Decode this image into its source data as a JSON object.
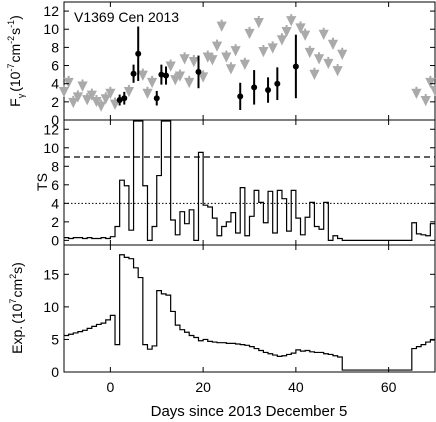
{
  "chart_data": [
    {
      "type": "scatter",
      "annotation": "V1369 Cen 2013",
      "ylabel": "F",
      "ylabel_sub": "γ",
      "ylabel_unit": "(10",
      "ylabel_exp1": "-7",
      "ylabel_unit2": "cm",
      "ylabel_exp2": "-2",
      "ylabel_unit3": "s",
      "ylabel_exp3": "-1",
      "ylabel_close": ")",
      "xlim": [
        -10,
        70
      ],
      "ylim": [
        0,
        13
      ],
      "yticks": [
        0,
        2,
        4,
        6,
        8,
        10,
        12
      ],
      "colors": {
        "detections": "#000000",
        "upper_limits": "#aaaaaa"
      },
      "detections": [
        {
          "x": 2.0,
          "y": 2.2,
          "err": 0.6
        },
        {
          "x": 3.0,
          "y": 2.4,
          "err": 0.7
        },
        {
          "x": 5.0,
          "y": 5.1,
          "err": 1.0
        },
        {
          "x": 6.0,
          "y": 7.3,
          "err": 3.0
        },
        {
          "x": 10.0,
          "y": 2.4,
          "err": 0.8
        },
        {
          "x": 11.0,
          "y": 5.0,
          "err": 1.1
        },
        {
          "x": 12.0,
          "y": 4.9,
          "err": 1.0
        },
        {
          "x": 19.0,
          "y": 5.3,
          "err": 1.8
        },
        {
          "x": 28.0,
          "y": 2.6,
          "err": 1.5
        },
        {
          "x": 31.0,
          "y": 3.6,
          "err": 1.9
        },
        {
          "x": 34.0,
          "y": 3.3,
          "err": 1.4
        },
        {
          "x": 36.0,
          "y": 4.0,
          "err": 1.8
        },
        {
          "x": 40.0,
          "y": 5.9,
          "err": 3.5
        }
      ],
      "upper_limits": [
        {
          "x": -10.0,
          "y": 3.2
        },
        {
          "x": -9.0,
          "y": 4.2
        },
        {
          "x": -8.0,
          "y": 2.0
        },
        {
          "x": -7.0,
          "y": 2.6
        },
        {
          "x": -6.0,
          "y": 3.8
        },
        {
          "x": -5.0,
          "y": 2.3
        },
        {
          "x": -4.0,
          "y": 2.8
        },
        {
          "x": -3.0,
          "y": 2.1
        },
        {
          "x": -2.0,
          "y": 1.6
        },
        {
          "x": -1.0,
          "y": 2.4
        },
        {
          "x": 0.0,
          "y": 3.0
        },
        {
          "x": 1.0,
          "y": 1.8
        },
        {
          "x": 4.0,
          "y": 3.2
        },
        {
          "x": 7.0,
          "y": 5.0
        },
        {
          "x": 8.0,
          "y": 3.0
        },
        {
          "x": 9.0,
          "y": 4.2
        },
        {
          "x": 13.0,
          "y": 6.0
        },
        {
          "x": 14.0,
          "y": 4.5
        },
        {
          "x": 15.0,
          "y": 4.9
        },
        {
          "x": 16.0,
          "y": 6.8
        },
        {
          "x": 17.0,
          "y": 4.2
        },
        {
          "x": 18.0,
          "y": 6.5
        },
        {
          "x": 20.0,
          "y": 4.8
        },
        {
          "x": 21.0,
          "y": 7.0
        },
        {
          "x": 22.0,
          "y": 6.7
        },
        {
          "x": 23.0,
          "y": 8.2
        },
        {
          "x": 24.0,
          "y": 10.4
        },
        {
          "x": 25.0,
          "y": 7.0
        },
        {
          "x": 26.0,
          "y": 5.7
        },
        {
          "x": 27.0,
          "y": 7.7
        },
        {
          "x": 29.0,
          "y": 6.2
        },
        {
          "x": 30.0,
          "y": 9.6
        },
        {
          "x": 32.0,
          "y": 10.8
        },
        {
          "x": 33.0,
          "y": 7.6
        },
        {
          "x": 35.0,
          "y": 8.0
        },
        {
          "x": 37.0,
          "y": 8.9
        },
        {
          "x": 38.0,
          "y": 9.8
        },
        {
          "x": 39.0,
          "y": 11.0
        },
        {
          "x": 41.0,
          "y": 10.2
        },
        {
          "x": 42.0,
          "y": 9.4
        },
        {
          "x": 43.0,
          "y": 7.5
        },
        {
          "x": 44.0,
          "y": 5.1
        },
        {
          "x": 45.0,
          "y": 6.8
        },
        {
          "x": 46.0,
          "y": 9.5
        },
        {
          "x": 47.0,
          "y": 6.3
        },
        {
          "x": 48.0,
          "y": 8.4
        },
        {
          "x": 49.0,
          "y": 5.5
        },
        {
          "x": 50.0,
          "y": 7.3
        },
        {
          "x": 66.0,
          "y": 3.0
        },
        {
          "x": 68.0,
          "y": 2.2
        },
        {
          "x": 69.0,
          "y": 4.2
        },
        {
          "x": 70.0,
          "y": 3.3
        }
      ]
    },
    {
      "type": "line",
      "style": "step",
      "ylabel": "TS",
      "xlim": [
        -10,
        70
      ],
      "ylim": [
        -0.5,
        13
      ],
      "yticks": [
        0,
        2,
        4,
        6,
        8,
        10,
        12
      ],
      "reference_lines": [
        {
          "y": 9,
          "style": "dashed"
        },
        {
          "y": 4,
          "style": "dotted"
        }
      ],
      "x": [
        -10,
        -9,
        -8,
        -7,
        -6,
        -5,
        -4,
        -3,
        -2,
        -1,
        0,
        1,
        2,
        3,
        4,
        5,
        6,
        7,
        8,
        9,
        10,
        11,
        12,
        13,
        14,
        15,
        16,
        17,
        18,
        19,
        20,
        21,
        22,
        23,
        24,
        25,
        26,
        27,
        28,
        29,
        30,
        31,
        32,
        33,
        34,
        35,
        36,
        37,
        38,
        39,
        40,
        41,
        42,
        43,
        44,
        45,
        46,
        47,
        48,
        49,
        50,
        51,
        52,
        53,
        54,
        55,
        56,
        57,
        58,
        59,
        60,
        61,
        62,
        63,
        64,
        65,
        66,
        67,
        68,
        69
      ],
      "values": [
        0.3,
        0.2,
        0.3,
        0.3,
        0.2,
        0.3,
        0.2,
        0.2,
        0.3,
        0.2,
        0.4,
        1.5,
        6.5,
        5.9,
        1.1,
        13.0,
        13.0,
        5.9,
        0.0,
        1.5,
        7.0,
        13.0,
        13.0,
        2.2,
        0.6,
        3.1,
        1.8,
        3.3,
        0.0,
        9.5,
        3.8,
        3.6,
        2.4,
        0.5,
        1.5,
        2.0,
        3.0,
        0.8,
        5.7,
        0.5,
        2.6,
        5.4,
        4.1,
        1.9,
        5.3,
        0.8,
        5.4,
        4.5,
        1.0,
        5.4,
        2.4,
        0.6,
        2.5,
        4.1,
        1.5,
        1.2,
        4.1,
        0.0,
        0.5,
        0.2,
        0.0,
        0.0,
        0.0,
        0.0,
        0.0,
        0.0,
        0.0,
        0.0,
        0.0,
        0.0,
        0.0,
        0.0,
        0.0,
        0.0,
        0.0,
        1.9,
        0.7,
        0.6,
        0.5,
        1.8
      ]
    },
    {
      "type": "line",
      "style": "step",
      "ylabel": "Exp.",
      "ylabel_unit": "(10",
      "ylabel_exp1": "7",
      "ylabel_unit2": "cm",
      "ylabel_exp2": "2",
      "ylabel_unit3": "s)",
      "xlabel": "Days since 2013 December 5",
      "xlim": [
        -10,
        70
      ],
      "ylim": [
        0,
        19.5
      ],
      "yticks": [
        0,
        5,
        10,
        15
      ],
      "xticks": [
        0,
        20,
        40,
        60
      ],
      "x": [
        -10,
        -9,
        -8,
        -7,
        -6,
        -5,
        -4,
        -3,
        -2,
        -1,
        0,
        1,
        2,
        3,
        4,
        5,
        6,
        7,
        8,
        9,
        10,
        11,
        12,
        13,
        14,
        15,
        16,
        17,
        18,
        19,
        20,
        21,
        22,
        23,
        24,
        25,
        26,
        27,
        28,
        29,
        30,
        31,
        32,
        33,
        34,
        35,
        36,
        37,
        38,
        39,
        40,
        41,
        42,
        43,
        44,
        45,
        46,
        47,
        48,
        49,
        50,
        51,
        52,
        53,
        54,
        55,
        56,
        57,
        58,
        59,
        60,
        61,
        62,
        63,
        64,
        65,
        66,
        67,
        68,
        69
      ],
      "values": [
        5.6,
        5.8,
        6.0,
        6.2,
        6.4,
        6.7,
        7.0,
        7.3,
        7.5,
        8.0,
        8.7,
        4.2,
        18.0,
        17.6,
        17.4,
        16.0,
        14.5,
        4.2,
        3.5,
        4.0,
        12.5,
        12.0,
        11.8,
        9.3,
        7.2,
        6.5,
        6.1,
        5.6,
        5.3,
        4.8,
        5.0,
        4.7,
        4.6,
        4.5,
        4.5,
        4.4,
        4.4,
        4.3,
        4.2,
        4.1,
        3.9,
        3.6,
        3.3,
        3.0,
        2.8,
        2.6,
        2.4,
        2.5,
        2.7,
        2.9,
        3.4,
        3.2,
        3.3,
        3.1,
        3.0,
        3.0,
        2.8,
        2.7,
        2.5,
        2.3,
        0.3,
        0.3,
        0.3,
        0.3,
        0.3,
        0.3,
        0.3,
        0.3,
        0.3,
        0.3,
        0.3,
        0.3,
        0.3,
        0.3,
        0.3,
        3.6,
        3.9,
        4.2,
        4.6,
        4.9
      ]
    }
  ]
}
